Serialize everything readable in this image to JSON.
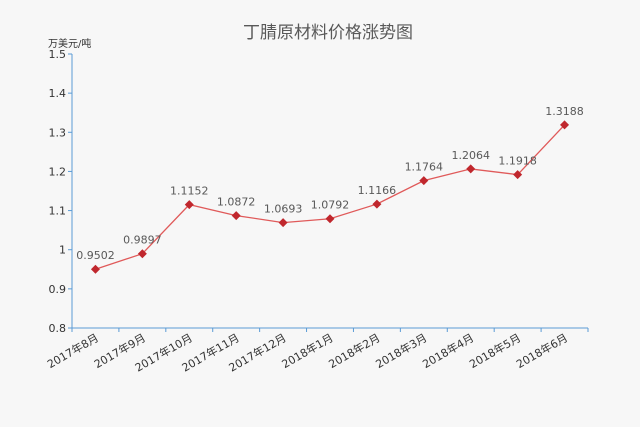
{
  "chart_data": {
    "type": "line",
    "title": "丁腈原材料价格涨势图",
    "ylabel": "万美元/吨",
    "xlabel": "",
    "categories": [
      "2017年8月",
      "2017年9月",
      "2017年10月",
      "2017年11月",
      "2017年12月",
      "2018年1月",
      "2018年2月",
      "2018年3月",
      "2018年4月",
      "2018年5月",
      "2018年6月"
    ],
    "series": [
      {
        "values": [
          0.9502,
          0.9897,
          1.1152,
          1.0872,
          1.0693,
          1.0792,
          1.1166,
          1.1764,
          1.2064,
          1.1918,
          1.3188
        ],
        "labels": [
          "0.9502",
          "0.9897",
          "1.1152",
          "1.0872",
          "1.0693",
          "1.0792",
          "1.1166",
          "1.1764",
          "1.2064",
          "1.1918",
          "1.3188"
        ]
      }
    ],
    "ylim": [
      0.8,
      1.5
    ],
    "yticks": [
      "0.8",
      "0.9",
      "1",
      "1.1",
      "1.2",
      "1.3",
      "1.4",
      "1.5"
    ],
    "grid": false,
    "legend": "none",
    "colors": {
      "line": "#e05a5a",
      "marker": "#c0272d",
      "axis": "#5b9bd5"
    }
  }
}
